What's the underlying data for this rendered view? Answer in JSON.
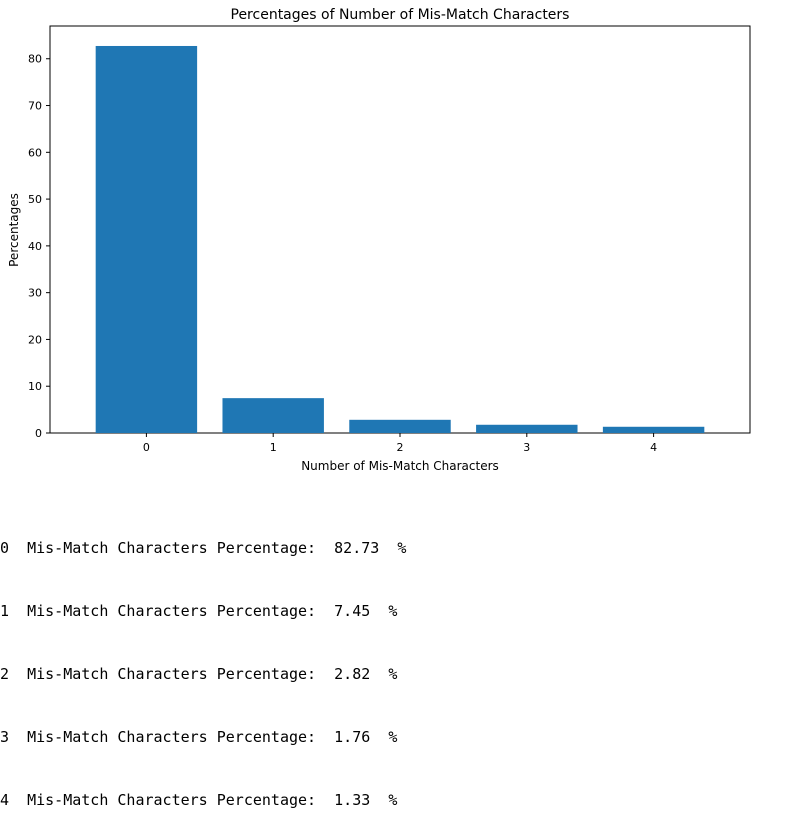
{
  "chart_data": {
    "type": "bar",
    "title": "Percentages of Number of Mis-Match Characters",
    "xlabel": "Number of Mis-Match Characters",
    "ylabel": "Percentages",
    "categories": [
      "0",
      "1",
      "2",
      "3",
      "4"
    ],
    "values": [
      82.73,
      7.45,
      2.82,
      1.76,
      1.33
    ],
    "ylim": [
      0,
      87
    ],
    "yticks": [
      0,
      10,
      20,
      30,
      40,
      50,
      60,
      70,
      80
    ],
    "bar_color": "#1f77b4",
    "grid": false,
    "legend": "none"
  },
  "output": {
    "lines": [
      "0  Mis-Match Characters Percentage:  82.73  %",
      "1  Mis-Match Characters Percentage:  7.45  %",
      "2  Mis-Match Characters Percentage:  2.82  %",
      "3  Mis-Match Characters Percentage:  1.76  %",
      "4  Mis-Match Characters Percentage:  1.33  %"
    ]
  }
}
